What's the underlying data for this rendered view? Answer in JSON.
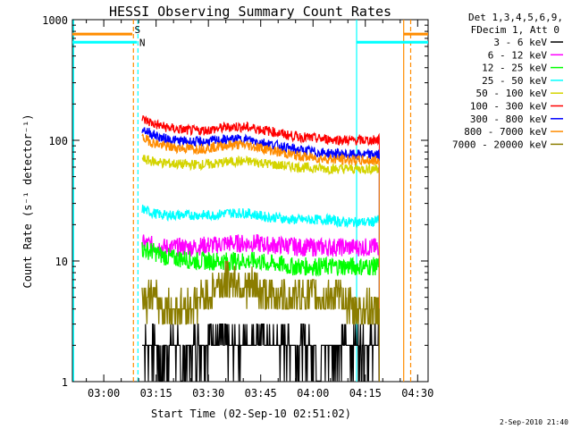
{
  "chart_data": {
    "type": "line",
    "title": "HESSI Observing Summary Count Rates",
    "xlabel": "Start Time (02-Sep-10 02:51:02)",
    "ylabel": "Count Rate (s⁻¹ detector⁻¹)",
    "yscale": "log",
    "ylim": [
      1,
      1000
    ],
    "xlim_minutes_since_0300": [
      -9,
      93
    ],
    "x_ticks": [
      {
        "label": "03:00",
        "min": 0
      },
      {
        "label": "03:15",
        "min": 15
      },
      {
        "label": "03:30",
        "min": 30
      },
      {
        "label": "03:45",
        "min": 45
      },
      {
        "label": "04:00",
        "min": 60
      },
      {
        "label": "04:15",
        "min": 75
      },
      {
        "label": "04:30",
        "min": 90
      }
    ],
    "y_ticks": [
      {
        "label": "1",
        "value": 1
      },
      {
        "label": "10",
        "value": 10
      },
      {
        "label": "100",
        "value": 100
      },
      {
        "label": "1000",
        "value": 1000
      }
    ],
    "legend_header": [
      "Det 1,3,4,5,6,9,",
      "FDecim 1, Att 0"
    ],
    "legend_placement": "right",
    "series": [
      {
        "name": "3 - 6 keV",
        "color": "#000000",
        "x": [
          11,
          14,
          17,
          20,
          23,
          26,
          29,
          32,
          35,
          38,
          41,
          44,
          47,
          50,
          53,
          56,
          59,
          62,
          65,
          68,
          71,
          74,
          77,
          79
        ],
        "y": [
          2.0,
          2.0,
          1.5,
          2.0,
          1.5,
          2.0,
          2.0,
          2.5,
          2.0,
          2.0,
          2.0,
          2.5,
          2.0,
          2.0,
          2.0,
          2.0,
          2.0,
          1.5,
          2.0,
          2.0,
          2.0,
          2.0,
          2.0,
          2.0
        ]
      },
      {
        "name": "6 - 12 keV",
        "color": "#ff00ff",
        "x": [
          11,
          14,
          17,
          20,
          23,
          26,
          29,
          32,
          35,
          38,
          41,
          44,
          47,
          50,
          53,
          56,
          59,
          62,
          65,
          68,
          71,
          74,
          77,
          79
        ],
        "y": [
          14,
          13.5,
          13,
          13,
          13,
          13,
          13.5,
          13.5,
          14,
          14,
          14,
          14,
          13.5,
          13.5,
          13.5,
          13,
          13,
          13,
          13,
          13,
          13,
          13,
          13,
          13
        ]
      },
      {
        "name": "12 - 25 keV",
        "color": "#00ff00",
        "x": [
          11,
          14,
          17,
          20,
          23,
          26,
          29,
          32,
          35,
          38,
          41,
          44,
          47,
          50,
          53,
          56,
          59,
          62,
          65,
          68,
          71,
          74,
          77,
          79
        ],
        "y": [
          12.5,
          12,
          11,
          10.5,
          10.5,
          10,
          10,
          10,
          10,
          10,
          10,
          10,
          9.5,
          9.5,
          9,
          9,
          9,
          9,
          9,
          9,
          9,
          9,
          9,
          9
        ]
      },
      {
        "name": "25 - 50 keV",
        "color": "#00ffff",
        "x": [
          11,
          14,
          17,
          20,
          23,
          26,
          29,
          32,
          35,
          38,
          41,
          44,
          47,
          50,
          53,
          56,
          59,
          62,
          65,
          68,
          71,
          74,
          77,
          79
        ],
        "y": [
          27,
          25,
          24,
          24,
          24,
          24,
          24,
          24,
          25,
          25,
          25,
          24,
          23,
          23,
          22,
          22,
          22,
          22,
          22,
          21,
          21,
          21,
          21,
          22
        ]
      },
      {
        "name": "50 - 100 keV",
        "color": "#d4d400",
        "x": [
          11,
          14,
          17,
          20,
          23,
          26,
          29,
          32,
          35,
          38,
          41,
          44,
          47,
          50,
          53,
          56,
          59,
          62,
          65,
          68,
          71,
          74,
          77,
          79
        ],
        "y": [
          70,
          67,
          65,
          64,
          63,
          63,
          63,
          64,
          66,
          67,
          67,
          66,
          64,
          62,
          61,
          60,
          59,
          59,
          58,
          58,
          58,
          58,
          58,
          59
        ]
      },
      {
        "name": "100 - 300 keV",
        "color": "#ff0000",
        "x": [
          11,
          14,
          17,
          20,
          23,
          26,
          29,
          32,
          35,
          38,
          41,
          44,
          47,
          50,
          53,
          56,
          59,
          62,
          65,
          68,
          71,
          74,
          77,
          79
        ],
        "y": [
          150,
          138,
          130,
          125,
          122,
          120,
          121,
          124,
          128,
          130,
          128,
          125,
          120,
          115,
          110,
          107,
          105,
          103,
          102,
          101,
          100,
          100,
          100,
          101
        ]
      },
      {
        "name": "300 - 800 keV",
        "color": "#0000ff",
        "x": [
          11,
          14,
          17,
          20,
          23,
          26,
          29,
          32,
          35,
          38,
          41,
          44,
          47,
          50,
          53,
          56,
          59,
          62,
          65,
          68,
          71,
          74,
          77,
          79
        ],
        "y": [
          125,
          112,
          104,
          100,
          98,
          97,
          97,
          99,
          101,
          102,
          101,
          98,
          94,
          90,
          86,
          83,
          81,
          79,
          78,
          77,
          76,
          76,
          76,
          76
        ]
      },
      {
        "name": "800 - 7000 keV",
        "color": "#ff8c00",
        "x": [
          11,
          14,
          17,
          20,
          23,
          26,
          29,
          32,
          35,
          38,
          41,
          44,
          47,
          50,
          53,
          56,
          59,
          62,
          65,
          68,
          71,
          74,
          77,
          79
        ],
        "y": [
          105,
          96,
          90,
          87,
          86,
          85,
          86,
          88,
          91,
          92,
          91,
          88,
          84,
          80,
          77,
          74,
          72,
          71,
          70,
          69,
          69,
          68,
          68,
          68
        ]
      },
      {
        "name": "7000 - 20000 keV",
        "color": "#8b7d00",
        "x": [
          11,
          14,
          17,
          20,
          23,
          26,
          29,
          32,
          35,
          38,
          41,
          44,
          47,
          50,
          53,
          56,
          59,
          62,
          65,
          68,
          71,
          74,
          77,
          79
        ],
        "y": [
          5,
          5,
          4,
          4,
          4,
          4.5,
          5,
          6,
          7,
          7,
          6,
          6,
          5,
          5,
          5,
          5,
          5,
          5,
          5,
          5,
          4,
          4,
          4,
          4
        ]
      }
    ],
    "annotations": [
      {
        "label": "S",
        "color": "#ff8c00"
      },
      {
        "label": "N",
        "color": "#00ffff"
      }
    ]
  },
  "footer": {
    "timestamp": "2-Sep-2010 21:40"
  }
}
